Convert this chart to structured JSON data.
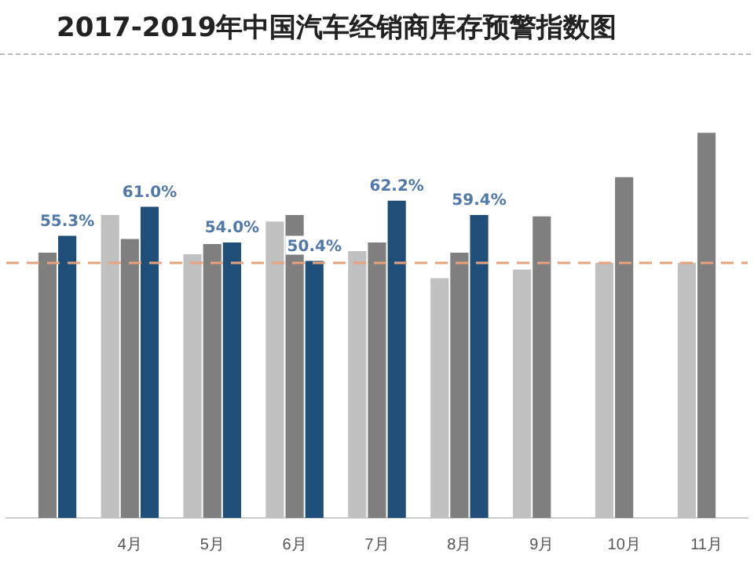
{
  "chart_data": {
    "type": "bar",
    "title": "2017-2019年中国汽车经销商库存预警指数图",
    "categories": [
      null,
      "4月",
      "5月",
      "6月",
      "7月",
      "8月",
      "9月",
      "10月",
      "11月"
    ],
    "series": [
      {
        "color": "#c0c0c0",
        "values": [
          null,
          59.4,
          51.7,
          58.1,
          52.3,
          47.0,
          48.7,
          50.0,
          50.0
        ]
      },
      {
        "color": "#7f7f7f",
        "values": [
          52.0,
          54.7,
          53.7,
          59.4,
          54.0,
          52.0,
          59.1,
          66.8,
          75.5
        ]
      },
      {
        "color": "#1f4e79",
        "values": [
          55.3,
          61.0,
          54.0,
          50.4,
          62.2,
          59.4,
          null,
          null,
          null
        ],
        "value_labels": [
          "55.3%",
          "61.0%",
          "54.0%",
          "50.4%",
          "62.2%",
          "59.4%",
          null,
          null,
          null
        ]
      }
    ],
    "ref_lines": [
      {
        "axis": "y",
        "value": 50,
        "color": "#e8a27c",
        "line_style": "dashed"
      }
    ],
    "grid": false,
    "legend": false,
    "tick_labels": "x"
  }
}
